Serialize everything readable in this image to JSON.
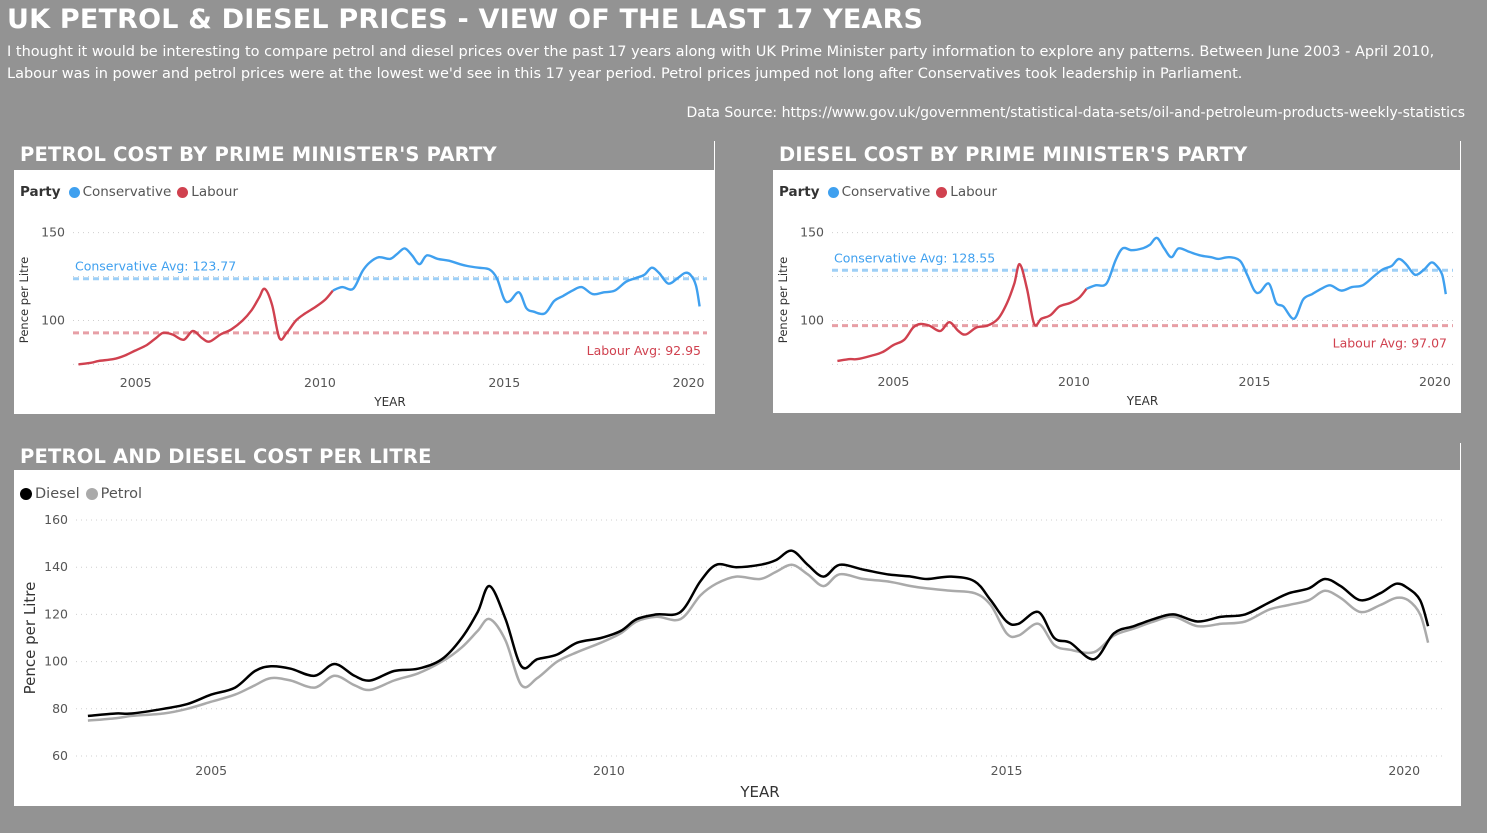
{
  "page": {
    "title": "UK PETROL & DIESEL PRICES - VIEW OF THE LAST 17 YEARS",
    "intro": "I thought it would be interesting to compare petrol and diesel prices over the past 17 years along with UK Prime Minister party information to explore any patterns. Between June 2003 - April 2010, Labour was in power and petrol prices were at the lowest we'd see in this 17 year period. Petrol prices jumped not long after Conservatives took leadership in Parliament.",
    "source": "Data Source: https://www.gov.uk/government/statistical-data-sets/oil-and-petroleum-products-weekly-statistics"
  },
  "colors": {
    "conservative": "#3fa0ef",
    "labour": "#d0414f",
    "diesel": "#000000",
    "petrol": "#aaaaaa",
    "background": "#939393"
  },
  "chart_data": [
    {
      "id": "petrol_party",
      "type": "line",
      "title": "PETROL COST BY PRIME MINISTER'S PARTY",
      "legend_title": "Party",
      "xlabel": "YEAR",
      "ylabel": "Pence per Litre",
      "xlim": [
        2003.3,
        2020.5
      ],
      "ylim": [
        65,
        160
      ],
      "xticks": [
        2005,
        2010,
        2015,
        2020
      ],
      "yticks": [
        100,
        150
      ],
      "grid": "horizontal dotted",
      "legend_position": "top-left",
      "switch_year": 2010.35,
      "series": [
        {
          "name": "Conservative",
          "color_key": "conservative"
        },
        {
          "name": "Labour",
          "color_key": "labour"
        }
      ],
      "x": [
        2003.45,
        2003.8,
        2004.0,
        2004.4,
        2004.7,
        2005.0,
        2005.3,
        2005.55,
        2005.75,
        2006.0,
        2006.3,
        2006.55,
        2006.8,
        2007.0,
        2007.3,
        2007.6,
        2007.9,
        2008.15,
        2008.35,
        2008.5,
        2008.7,
        2008.9,
        2009.1,
        2009.35,
        2009.6,
        2009.9,
        2010.15,
        2010.35,
        2010.6,
        2010.9,
        2011.15,
        2011.35,
        2011.6,
        2011.9,
        2012.1,
        2012.3,
        2012.5,
        2012.7,
        2012.9,
        2013.2,
        2013.5,
        2013.8,
        2014.0,
        2014.3,
        2014.6,
        2014.8,
        2015.0,
        2015.15,
        2015.4,
        2015.6,
        2015.8,
        2016.1,
        2016.35,
        2016.6,
        2016.85,
        2017.1,
        2017.4,
        2017.7,
        2018.0,
        2018.3,
        2018.55,
        2018.8,
        2019.0,
        2019.2,
        2019.45,
        2019.7,
        2019.9,
        2020.05,
        2020.2,
        2020.3
      ],
      "values": [
        75,
        76,
        77,
        78,
        80,
        83,
        86,
        90,
        93,
        92,
        89,
        94,
        90,
        88,
        92,
        95,
        100,
        106,
        113,
        118,
        109,
        90,
        93,
        100,
        104,
        108,
        112,
        117,
        119,
        118,
        128,
        133,
        136,
        135,
        138,
        141,
        137,
        132,
        137,
        135,
        134,
        132,
        131,
        130,
        129,
        124,
        112,
        111,
        116,
        107,
        105,
        104,
        111,
        114,
        117,
        119,
        115,
        116,
        117,
        122,
        124,
        126,
        130,
        127,
        121,
        124,
        127,
        126,
        120,
        108
      ],
      "reference_lines": [
        {
          "label": "Conservative Avg: 123.77",
          "value": 123.77,
          "color_key": "conservative",
          "label_position": "top-left"
        },
        {
          "label": "Labour Avg: 92.95",
          "value": 92.95,
          "color_key": "labour",
          "label_position": "bottom-right"
        }
      ]
    },
    {
      "id": "diesel_party",
      "type": "line",
      "title": "DIESEL COST BY PRIME MINISTER'S PARTY",
      "legend_title": "Party",
      "xlabel": "YEAR",
      "ylabel": "Pence per Litre",
      "xlim": [
        2003.3,
        2020.5
      ],
      "ylim": [
        65,
        160
      ],
      "xticks": [
        2005,
        2010,
        2015,
        2020
      ],
      "yticks": [
        100,
        150
      ],
      "grid": "horizontal dotted",
      "legend_position": "top-left",
      "switch_year": 2010.35,
      "series": [
        {
          "name": "Conservative",
          "color_key": "conservative"
        },
        {
          "name": "Labour",
          "color_key": "labour"
        }
      ],
      "x": [
        2003.45,
        2003.8,
        2004.0,
        2004.4,
        2004.7,
        2005.0,
        2005.3,
        2005.55,
        2005.75,
        2006.0,
        2006.3,
        2006.55,
        2006.8,
        2007.0,
        2007.3,
        2007.6,
        2007.9,
        2008.15,
        2008.35,
        2008.5,
        2008.7,
        2008.9,
        2009.1,
        2009.35,
        2009.6,
        2009.9,
        2010.15,
        2010.35,
        2010.6,
        2010.9,
        2011.15,
        2011.35,
        2011.6,
        2011.9,
        2012.1,
        2012.3,
        2012.5,
        2012.7,
        2012.9,
        2013.2,
        2013.5,
        2013.8,
        2014.0,
        2014.3,
        2014.6,
        2014.8,
        2015.0,
        2015.15,
        2015.4,
        2015.6,
        2015.8,
        2016.1,
        2016.35,
        2016.6,
        2016.85,
        2017.1,
        2017.4,
        2017.7,
        2018.0,
        2018.3,
        2018.55,
        2018.8,
        2019.0,
        2019.2,
        2019.45,
        2019.7,
        2019.9,
        2020.05,
        2020.2,
        2020.3
      ],
      "values": [
        77,
        78,
        78,
        80,
        82,
        86,
        89,
        96,
        98,
        97,
        94,
        99,
        94,
        92,
        96,
        97,
        101,
        110,
        121,
        132,
        118,
        98,
        101,
        103,
        108,
        110,
        113,
        118,
        120,
        121,
        134,
        141,
        140,
        141,
        143,
        147,
        141,
        136,
        141,
        139,
        137,
        136,
        135,
        136,
        134,
        126,
        117,
        116,
        121,
        110,
        108,
        101,
        112,
        115,
        118,
        120,
        117,
        119,
        120,
        125,
        129,
        131,
        135,
        132,
        126,
        129,
        133,
        131,
        126,
        115
      ],
      "reference_lines": [
        {
          "label": "Conservative Avg: 128.55",
          "value": 128.55,
          "color_key": "conservative",
          "label_position": "top-left"
        },
        {
          "label": "Labour Avg: 97.07",
          "value": 97.07,
          "color_key": "labour",
          "label_position": "bottom-right"
        }
      ]
    },
    {
      "id": "petrol_diesel",
      "type": "line",
      "title": "PETROL AND DIESEL COST PER LITRE",
      "xlabel": "YEAR",
      "ylabel": "Pence per Litre",
      "xlim": [
        2003.3,
        2020.5
      ],
      "ylim": [
        60,
        160
      ],
      "xticks": [
        2005,
        2010,
        2015,
        2020
      ],
      "yticks": [
        60,
        80,
        100,
        120,
        140,
        160
      ],
      "grid": "horizontal dotted",
      "legend_position": "top-left",
      "x": [
        2003.45,
        2003.8,
        2004.0,
        2004.4,
        2004.7,
        2005.0,
        2005.3,
        2005.55,
        2005.75,
        2006.0,
        2006.3,
        2006.55,
        2006.8,
        2007.0,
        2007.3,
        2007.6,
        2007.9,
        2008.15,
        2008.35,
        2008.5,
        2008.7,
        2008.9,
        2009.1,
        2009.35,
        2009.6,
        2009.9,
        2010.15,
        2010.35,
        2010.6,
        2010.9,
        2011.15,
        2011.35,
        2011.6,
        2011.9,
        2012.1,
        2012.3,
        2012.5,
        2012.7,
        2012.9,
        2013.2,
        2013.5,
        2013.8,
        2014.0,
        2014.3,
        2014.6,
        2014.8,
        2015.0,
        2015.15,
        2015.4,
        2015.6,
        2015.8,
        2016.1,
        2016.35,
        2016.6,
        2016.85,
        2017.1,
        2017.4,
        2017.7,
        2018.0,
        2018.3,
        2018.55,
        2018.8,
        2019.0,
        2019.2,
        2019.45,
        2019.7,
        2019.9,
        2020.05,
        2020.2,
        2020.3
      ],
      "series": [
        {
          "name": "Diesel",
          "color_key": "diesel",
          "values": [
            77,
            78,
            78,
            80,
            82,
            86,
            89,
            96,
            98,
            97,
            94,
            99,
            94,
            92,
            96,
            97,
            101,
            110,
            121,
            132,
            118,
            98,
            101,
            103,
            108,
            110,
            113,
            118,
            120,
            121,
            134,
            141,
            140,
            141,
            143,
            147,
            141,
            136,
            141,
            139,
            137,
            136,
            135,
            136,
            134,
            126,
            117,
            116,
            121,
            110,
            108,
            101,
            112,
            115,
            118,
            120,
            117,
            119,
            120,
            125,
            129,
            131,
            135,
            132,
            126,
            129,
            133,
            131,
            126,
            115
          ]
        },
        {
          "name": "Petrol",
          "color_key": "petrol",
          "values": [
            75,
            76,
            77,
            78,
            80,
            83,
            86,
            90,
            93,
            92,
            89,
            94,
            90,
            88,
            92,
            95,
            100,
            106,
            113,
            118,
            109,
            90,
            93,
            100,
            104,
            108,
            112,
            117,
            119,
            118,
            128,
            133,
            136,
            135,
            138,
            141,
            137,
            132,
            137,
            135,
            134,
            132,
            131,
            130,
            129,
            124,
            112,
            111,
            116,
            107,
            105,
            104,
            111,
            114,
            117,
            119,
            115,
            116,
            117,
            122,
            124,
            126,
            130,
            127,
            121,
            124,
            127,
            126,
            120,
            108
          ]
        }
      ]
    }
  ]
}
